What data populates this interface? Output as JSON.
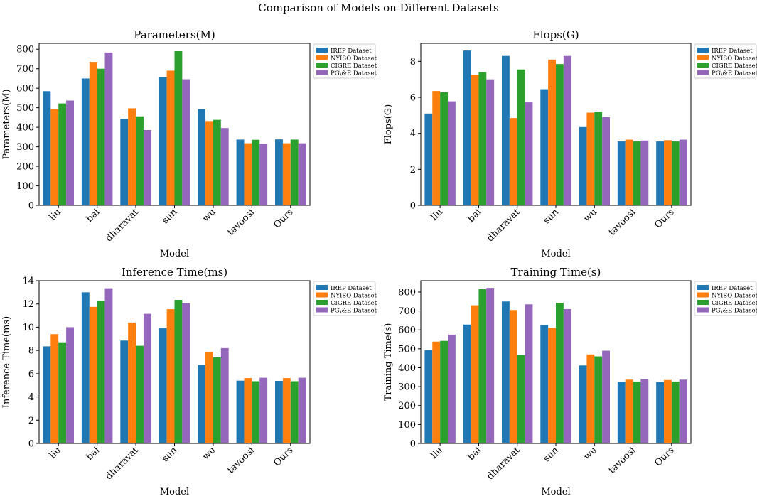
{
  "figure_title": "Comparison of Models on Different Datasets",
  "colors": {
    "IREP Dataset": "#1f77b4",
    "NYISO Dataset": "#ff7f0e",
    "CIGRE Dataset": "#2ca02c",
    "PG\\&E Dataset": "#9467bd"
  },
  "chart_data": [
    {
      "type": "bar",
      "title": "Parameters(M)",
      "xlabel": "Model",
      "ylabel": "Parameters(M)",
      "categories": [
        "liu",
        "bai",
        "dharavat",
        "sun",
        "wu",
        "tavoosi",
        "Ours"
      ],
      "ylim": [
        0,
        830
      ],
      "yticks": [
        0,
        100,
        200,
        300,
        400,
        500,
        600,
        700,
        800
      ],
      "legend_position": "top-right",
      "series": [
        {
          "name": "IREP Dataset",
          "values": [
            585,
            650,
            443,
            657,
            493,
            337,
            338
          ]
        },
        {
          "name": "NYISO Dataset",
          "values": [
            493,
            735,
            497,
            690,
            432,
            318,
            318
          ]
        },
        {
          "name": "CIGRE Dataset",
          "values": [
            522,
            700,
            456,
            790,
            438,
            336,
            337
          ]
        },
        {
          "name": "PG\\&E Dataset",
          "values": [
            537,
            783,
            386,
            646,
            396,
            316,
            318
          ]
        }
      ]
    },
    {
      "type": "bar",
      "title": "Flops(G)",
      "xlabel": "Model",
      "ylabel": "Flops(G)",
      "categories": [
        "liu",
        "bai",
        "dharavat",
        "sun",
        "wu",
        "tavoosi",
        "Ours"
      ],
      "ylim": [
        0,
        9.0
      ],
      "yticks": [
        0,
        2,
        4,
        6,
        8
      ],
      "legend_position": "top-right",
      "series": [
        {
          "name": "IREP Dataset",
          "values": [
            5.1,
            8.6,
            8.3,
            6.45,
            4.35,
            3.55,
            3.55
          ]
        },
        {
          "name": "NYISO Dataset",
          "values": [
            6.35,
            7.25,
            4.85,
            8.1,
            5.15,
            3.65,
            3.62
          ]
        },
        {
          "name": "CIGRE Dataset",
          "values": [
            6.28,
            7.4,
            7.55,
            7.85,
            5.2,
            3.55,
            3.55
          ]
        },
        {
          "name": "PG\\&E Dataset",
          "values": [
            5.78,
            7.0,
            5.72,
            8.3,
            4.9,
            3.6,
            3.65
          ]
        }
      ]
    },
    {
      "type": "bar",
      "title": "Inference Time(ms)",
      "xlabel": "Model",
      "ylabel": "Inference Time(ms)",
      "categories": [
        "liu",
        "bai",
        "dharavat",
        "sun",
        "wu",
        "tavoosi",
        "Ours"
      ],
      "ylim": [
        0,
        14
      ],
      "yticks": [
        0,
        2,
        4,
        6,
        8,
        10,
        12,
        14
      ],
      "legend_position": "top-right",
      "series": [
        {
          "name": "IREP Dataset",
          "values": [
            8.35,
            13.0,
            8.85,
            9.9,
            6.75,
            5.4,
            5.38
          ]
        },
        {
          "name": "NYISO Dataset",
          "values": [
            9.4,
            11.75,
            10.4,
            11.55,
            7.85,
            5.62,
            5.62
          ]
        },
        {
          "name": "CIGRE Dataset",
          "values": [
            8.7,
            12.25,
            8.4,
            12.35,
            7.4,
            5.35,
            5.35
          ]
        },
        {
          "name": "PG\\&E Dataset",
          "values": [
            10.0,
            13.35,
            11.15,
            12.05,
            8.2,
            5.65,
            5.65
          ]
        }
      ]
    },
    {
      "type": "bar",
      "title": "Training Time(s)",
      "xlabel": "Model",
      "ylabel": "Training Time(s)",
      "categories": [
        "liu",
        "bai",
        "dharavat",
        "sun",
        "wu",
        "tavoosi",
        "Ours"
      ],
      "ylim": [
        0,
        860
      ],
      "yticks": [
        0,
        100,
        200,
        300,
        400,
        500,
        600,
        700,
        800
      ],
      "legend_position": "top-right",
      "series": [
        {
          "name": "IREP Dataset",
          "values": [
            493,
            628,
            750,
            625,
            412,
            325,
            325
          ]
        },
        {
          "name": "NYISO Dataset",
          "values": [
            538,
            730,
            705,
            612,
            470,
            337,
            335
          ]
        },
        {
          "name": "CIGRE Dataset",
          "values": [
            542,
            815,
            466,
            743,
            460,
            327,
            327
          ]
        },
        {
          "name": "PG\\&E Dataset",
          "values": [
            575,
            822,
            735,
            710,
            490,
            338,
            337
          ]
        }
      ]
    }
  ]
}
